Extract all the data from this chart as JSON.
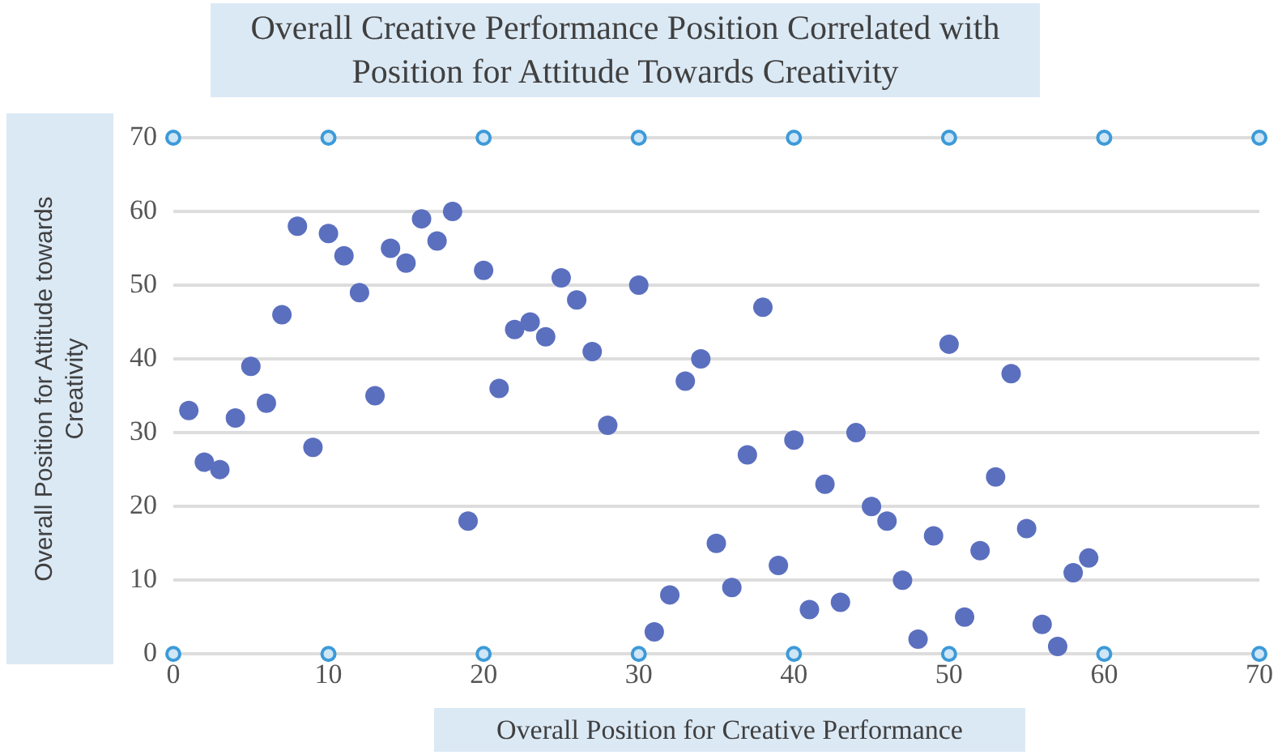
{
  "chart_data": {
    "type": "scatter",
    "title": "Overall Creative Performance Position Correlated with Position for Attitude Towards Creativity",
    "xlabel": "Overall Position for Creative Performance",
    "ylabel": "Overall  Position for Attitude towards Creativity",
    "series": [
      {
        "color": "#5b6fbf",
        "x": [
          1,
          2,
          3,
          4,
          5,
          6,
          7,
          8,
          9,
          10,
          11,
          12,
          13,
          14,
          15,
          16,
          17,
          18,
          19,
          20,
          21,
          22,
          23,
          24,
          25,
          26,
          27,
          28,
          30,
          31,
          32,
          33,
          34,
          35,
          36,
          37,
          38,
          39,
          40,
          41,
          42,
          43,
          44,
          45,
          46,
          47,
          48,
          49,
          50,
          51,
          52,
          53,
          54,
          55,
          56,
          57,
          58,
          59
        ],
        "values": [
          33,
          26,
          25,
          32,
          39,
          34,
          46,
          58,
          28,
          57,
          54,
          49,
          35,
          55,
          53,
          59,
          56,
          60,
          18,
          52,
          36,
          44,
          45,
          43,
          51,
          48,
          41,
          31,
          50,
          3,
          8,
          37,
          40,
          15,
          9,
          27,
          47,
          12,
          29,
          6,
          23,
          7,
          30,
          20,
          18,
          10,
          2,
          16,
          42,
          5,
          14,
          24,
          38,
          17,
          4,
          1,
          11,
          13
        ]
      },
      {
        "color": "#3d9ad8",
        "marker": "circle",
        "x": [
          0,
          10,
          20,
          30,
          40,
          50,
          60,
          70,
          0,
          10,
          20,
          30,
          40,
          50,
          60,
          70
        ],
        "values": [
          70,
          70,
          70,
          70,
          70,
          70,
          70,
          70,
          0,
          0,
          0,
          0,
          0,
          0,
          0,
          0
        ]
      }
    ],
    "xlim": [
      0,
      70
    ],
    "xticks": [
      0,
      10,
      20,
      30,
      40,
      50,
      60,
      70
    ],
    "ylim": [
      0,
      70
    ],
    "yticks": [
      0,
      10,
      20,
      30,
      40,
      50,
      60,
      70
    ],
    "grid": "y",
    "legend": false,
    "marker": "circle"
  }
}
